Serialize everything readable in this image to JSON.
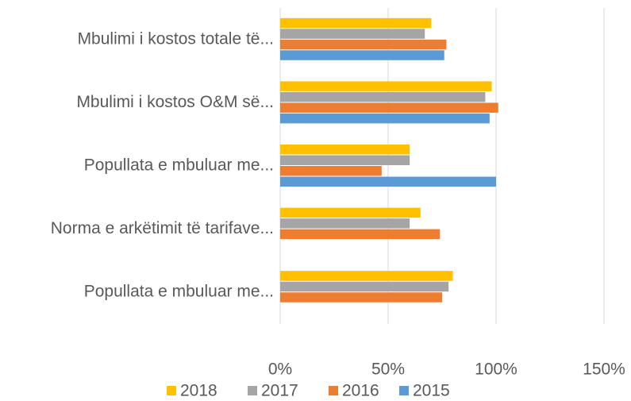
{
  "chart_data": {
    "type": "hbar",
    "categories": [
      "Mbulimi i kostos totale të...",
      "Mbulimi i kostos O&M së...",
      "Popullata e mbuluar me...",
      "Norma e arkëtimit të tarifave...",
      "Popullata e mbuluar me..."
    ],
    "series": [
      {
        "name": "2018",
        "color": "#ffc000",
        "values": [
          70,
          98,
          60,
          65,
          80
        ]
      },
      {
        "name": "2017",
        "color": "#a5a5a5",
        "values": [
          67,
          95,
          60,
          60,
          78
        ]
      },
      {
        "name": "2016",
        "color": "#ed7d31",
        "values": [
          77,
          101,
          47,
          74,
          75
        ]
      },
      {
        "name": "2015",
        "color": "#5b9bd5",
        "values": [
          76,
          97,
          100,
          null,
          null
        ]
      }
    ],
    "xlim": [
      0,
      150
    ],
    "xticks": [
      {
        "value": 0,
        "label": "0%"
      },
      {
        "value": 50,
        "label": "50%"
      },
      {
        "value": 100,
        "label": "100%"
      },
      {
        "value": 150,
        "label": "150%"
      }
    ],
    "grid": true,
    "legend": "bottom"
  }
}
